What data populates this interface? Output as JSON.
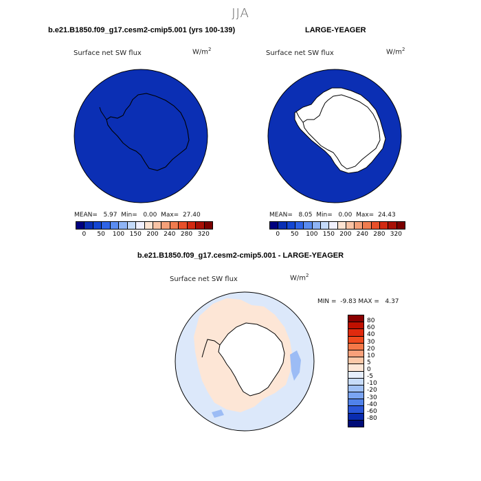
{
  "title": "JJA",
  "panel_left": {
    "case": "b.e21.B1850.f09_g17.cesm2-cmip5.001 (yrs 100-139)",
    "variable": "Surface net SW flux",
    "units": "W/m",
    "units_exp": "2",
    "stats": "MEAN=   5.97  Min=   0.00  Max=  27.40"
  },
  "panel_right": {
    "case": "LARGE-YEAGER",
    "variable": "Surface net SW flux",
    "units": "W/m",
    "units_exp": "2",
    "stats": "MEAN=   8.05  Min=   0.00  Max=  24.43"
  },
  "panel_diff": {
    "case": "b.e21.B1850.f09_g17.cesm2-cmip5.001 - LARGE-YEAGER",
    "variable": "Surface net SW flux",
    "units": "W/m",
    "units_exp": "2",
    "stats": "MIN =  -9.83 MAX =   4.37"
  },
  "abs_colorbar": {
    "tick_labels": [
      "0",
      "50",
      "100",
      "150",
      "200",
      "240",
      "280",
      "320"
    ],
    "colors": [
      "#00007f",
      "#0a2fb4",
      "#1446d2",
      "#2f64e6",
      "#5a8cf0",
      "#8fb4f5",
      "#c4dafa",
      "#f0f0ff",
      "#fde3d2",
      "#f9c3a5",
      "#f5a079",
      "#f07c4f",
      "#e8502a",
      "#d22a12",
      "#a81005",
      "#7a0000"
    ]
  },
  "diff_colorbar": {
    "tick_labels": [
      "80",
      "60",
      "40",
      "30",
      "20",
      "10",
      "5",
      "0",
      "-5",
      "-10",
      "-20",
      "-30",
      "-40",
      "-60",
      "-80"
    ],
    "colors": [
      "#8a0000",
      "#c01000",
      "#e02a0e",
      "#f04a1e",
      "#f57848",
      "#f8a07a",
      "#fbc8a8",
      "#fde6d6",
      "#e6eefc",
      "#c8dcfa",
      "#a0c0f6",
      "#7aa4f2",
      "#5082ea",
      "#2a56d8",
      "#0a2cb0",
      "#000c78"
    ]
  },
  "map": {
    "ocean_color_abs": "#0b2fb4",
    "land_color": "#ffffff",
    "diff_fill_light_red": "#fde6d6",
    "diff_fill_light_blue": "#dce8fa",
    "diff_fill_blue": "#9cbcf5"
  }
}
